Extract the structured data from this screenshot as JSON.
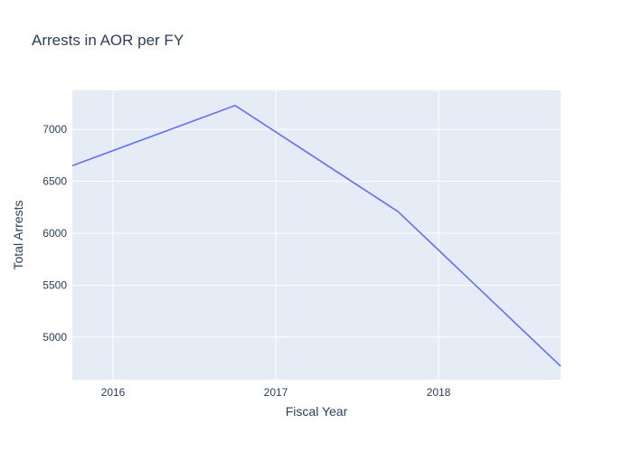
{
  "chart_data": {
    "type": "line",
    "title": "Arrests in AOR per FY",
    "xlabel": "Fiscal Year",
    "ylabel": "Total Arrests",
    "x": [
      2015.75,
      2016.75,
      2017.75,
      2018.75
    ],
    "series": [
      {
        "values": [
          6650,
          7230,
          6210,
          4720
        ]
      }
    ],
    "xlim": [
      2015.75,
      2018.75
    ],
    "ylim": [
      4590,
      7375
    ],
    "xticks": [
      2016,
      2017,
      2018
    ],
    "yticks": [
      5000,
      5500,
      6000,
      6500,
      7000
    ],
    "grid": true,
    "legend": "none",
    "colors": {
      "plot_bg": "#e5ecf6",
      "grid": "#ffffff",
      "line": "#636efa",
      "text": "#2a3f5f"
    }
  }
}
